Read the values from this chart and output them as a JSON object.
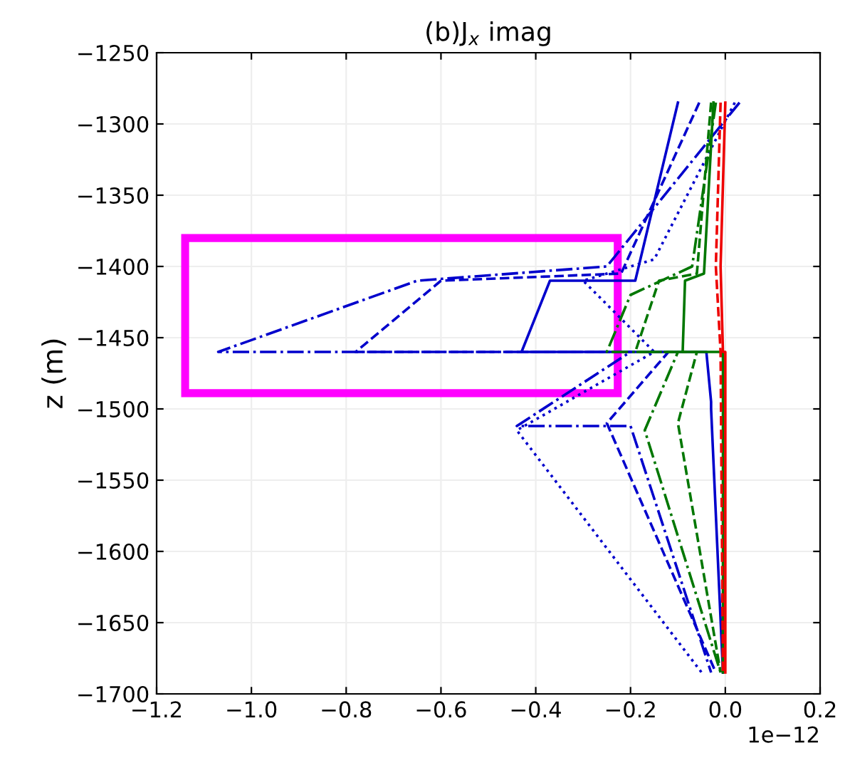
{
  "chart_data": {
    "type": "line",
    "title": "(b)J$_{x}$ imag",
    "ylabel": "z (m)",
    "annotations": [
      "1e−12"
    ],
    "xlim": [
      -1.2,
      0.2
    ],
    "xticks": [
      {
        "value": -1.2,
        "label": "−1.2"
      },
      {
        "value": -1.0,
        "label": "−1.0"
      },
      {
        "value": -0.8,
        "label": "−0.8"
      },
      {
        "value": -0.6,
        "label": "−0.6"
      },
      {
        "value": -0.4,
        "label": "−0.4"
      },
      {
        "value": -0.2,
        "label": "−0.2"
      },
      {
        "value": 0.0,
        "label": "0.0"
      },
      {
        "value": 0.2,
        "label": "0.2"
      }
    ],
    "ylim": [
      -1700,
      -1250
    ],
    "yticks": [
      {
        "value": -1700,
        "label": "−1700"
      },
      {
        "value": -1650,
        "label": "−1650"
      },
      {
        "value": -1600,
        "label": "−1600"
      },
      {
        "value": -1550,
        "label": "−1550"
      },
      {
        "value": -1500,
        "label": "−1500"
      },
      {
        "value": -1450,
        "label": "−1450"
      },
      {
        "value": -1400,
        "label": "−1400"
      },
      {
        "value": -1350,
        "label": "−1350"
      },
      {
        "value": -1300,
        "label": "−1300"
      },
      {
        "value": -1250,
        "label": "−1250"
      }
    ],
    "grid": true,
    "marker": "none",
    "series": [
      {
        "color": "#0000cc",
        "line_style": "solid",
        "x": [
          -0.1,
          -0.19,
          -0.37,
          -0.43,
          -0.04,
          -0.03,
          -0.03,
          -0.005
        ],
        "values": [
          -1285,
          -1410,
          -1410,
          -1460,
          -1460,
          -1495,
          -1500,
          -1685
        ]
      },
      {
        "color": "#0000cc",
        "line_style": "dashed",
        "x": [
          -0.055,
          -0.22,
          -0.6,
          -0.78,
          -0.12,
          -0.25,
          -0.02
        ],
        "values": [
          -1285,
          -1405,
          -1410,
          -1460,
          -1460,
          -1510,
          -1685
        ]
      },
      {
        "color": "#0000cc",
        "line_style": "dashdot",
        "x": [
          0.03,
          -0.25,
          -0.65,
          -1.07,
          -0.2,
          -0.44,
          -0.2,
          -0.03
        ],
        "values": [
          -1285,
          -1400,
          -1410,
          -1460,
          -1460,
          -1512,
          -1512,
          -1685
        ]
      },
      {
        "color": "#0000cc",
        "line_style": "dotted",
        "x": [
          0.02,
          -0.15,
          -0.3,
          -0.15,
          -0.44,
          -0.05
        ],
        "values": [
          -1285,
          -1395,
          -1410,
          -1460,
          -1515,
          -1685
        ]
      },
      {
        "color": "#007700",
        "line_style": "solid",
        "x": [
          -0.025,
          -0.045,
          -0.085,
          -0.09,
          -0.005,
          -0.005
        ],
        "values": [
          -1285,
          -1405,
          -1410,
          -1460,
          -1460,
          -1685
        ]
      },
      {
        "color": "#007700",
        "line_style": "dashed",
        "x": [
          -0.03,
          -0.06,
          -0.14,
          -0.19,
          -0.06,
          -0.1,
          -0.01
        ],
        "values": [
          -1285,
          -1405,
          -1410,
          -1460,
          -1460,
          -1510,
          -1685
        ]
      },
      {
        "color": "#007700",
        "line_style": "dashdot",
        "x": [
          -0.02,
          -0.07,
          -0.2,
          -0.25,
          -0.1,
          -0.17,
          -0.01
        ],
        "values": [
          -1285,
          -1400,
          -1420,
          -1460,
          -1460,
          -1515,
          -1685
        ]
      },
      {
        "color": "#ee0000",
        "line_style": "solid",
        "x": [
          0.0,
          -0.01,
          -0.005,
          0.0,
          0.0
        ],
        "values": [
          -1285,
          -1400,
          -1460,
          -1460,
          -1685
        ]
      },
      {
        "color": "#ee0000",
        "line_style": "dashed",
        "x": [
          -0.01,
          -0.02,
          -0.01,
          -0.005
        ],
        "values": [
          -1285,
          -1400,
          -1460,
          -1685
        ]
      }
    ]
  }
}
